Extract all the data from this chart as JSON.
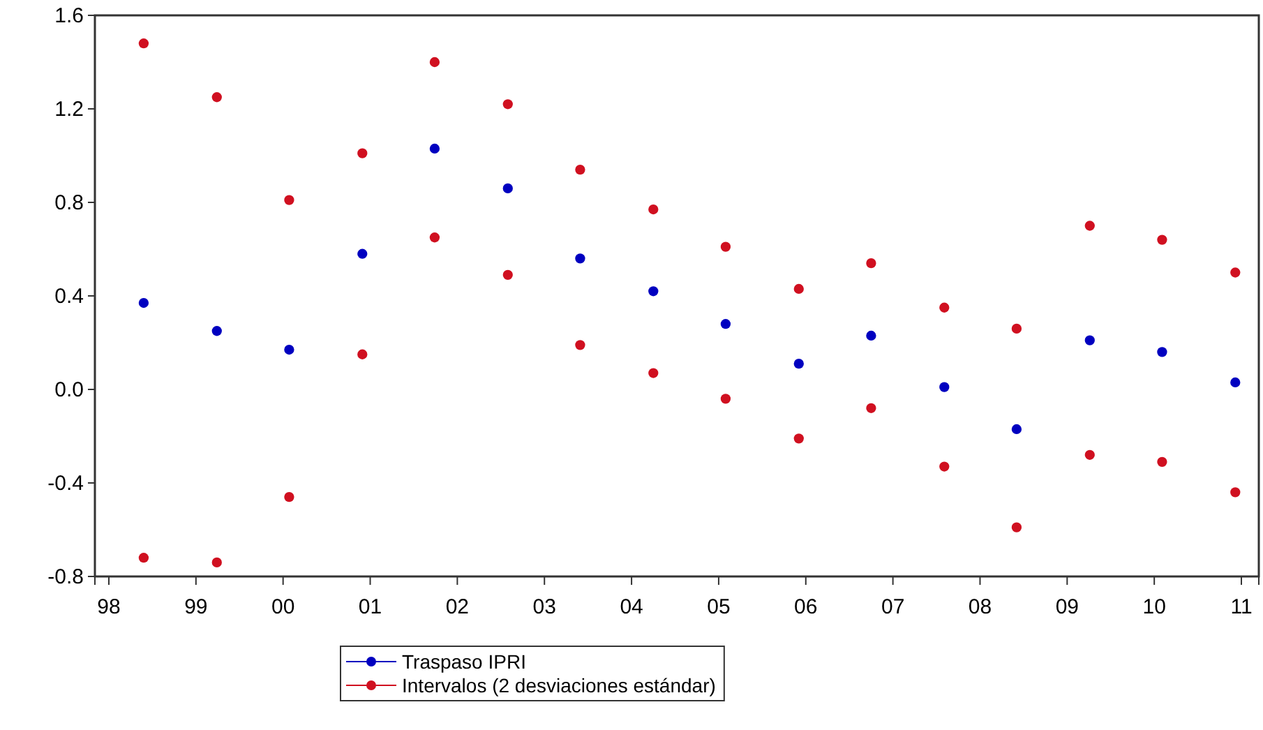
{
  "chart_data": {
    "type": "scatter",
    "marker": "circle",
    "legend": "bottom",
    "grid": false,
    "x": [
      1998.4,
      1999.24,
      2000.07,
      2000.91,
      2001.74,
      2002.58,
      2003.41,
      2004.25,
      2005.08,
      2005.92,
      2006.75,
      2007.59,
      2008.42,
      2009.26,
      2010.09,
      2010.93
    ],
    "series": [
      {
        "name": "Traspaso IPRI",
        "color": "#0000c0",
        "values": [
          0.37,
          0.25,
          0.17,
          0.58,
          1.03,
          0.86,
          0.56,
          0.42,
          0.28,
          0.11,
          0.23,
          0.01,
          -0.17,
          0.21,
          0.16,
          0.03
        ]
      },
      {
        "name": "Intervalos (2 desviaciones estándar)",
        "color": "#d01020",
        "values": [
          1.48,
          1.25,
          0.81,
          1.01,
          1.4,
          1.22,
          0.94,
          0.77,
          0.61,
          0.43,
          0.54,
          0.35,
          0.26,
          0.7,
          0.64,
          0.5
        ]
      },
      {
        "color": "#d01020",
        "values": [
          -0.72,
          -0.74,
          -0.46,
          0.15,
          0.65,
          0.49,
          0.19,
          0.07,
          -0.04,
          -0.21,
          -0.08,
          -0.33,
          -0.59,
          -0.28,
          -0.31,
          -0.44
        ]
      }
    ],
    "xlim": [
      1997.84,
      2011.2
    ],
    "xticks": [
      {
        "value": 1998,
        "label": "98"
      },
      {
        "value": 1999,
        "label": "99"
      },
      {
        "value": 2000,
        "label": "00"
      },
      {
        "value": 2001,
        "label": "01"
      },
      {
        "value": 2002,
        "label": "02"
      },
      {
        "value": 2003,
        "label": "03"
      },
      {
        "value": 2004,
        "label": "04"
      },
      {
        "value": 2005,
        "label": "05"
      },
      {
        "value": 2006,
        "label": "06"
      },
      {
        "value": 2007,
        "label": "07"
      },
      {
        "value": 2008,
        "label": "08"
      },
      {
        "value": 2009,
        "label": "09"
      },
      {
        "value": 2010,
        "label": "10"
      },
      {
        "value": 2011,
        "label": "11"
      }
    ],
    "ylim": [
      -0.8,
      1.6
    ],
    "yticks": [
      {
        "value": -0.8,
        "label": "-0.8"
      },
      {
        "value": -0.4,
        "label": "-0.4"
      },
      {
        "value": 0,
        "label": "0.0"
      },
      {
        "value": 0.4,
        "label": "0.4"
      },
      {
        "value": 0.8,
        "label": "0.8"
      },
      {
        "value": 1.2,
        "label": "1.2"
      },
      {
        "value": 1.6,
        "label": "1.6"
      }
    ]
  }
}
